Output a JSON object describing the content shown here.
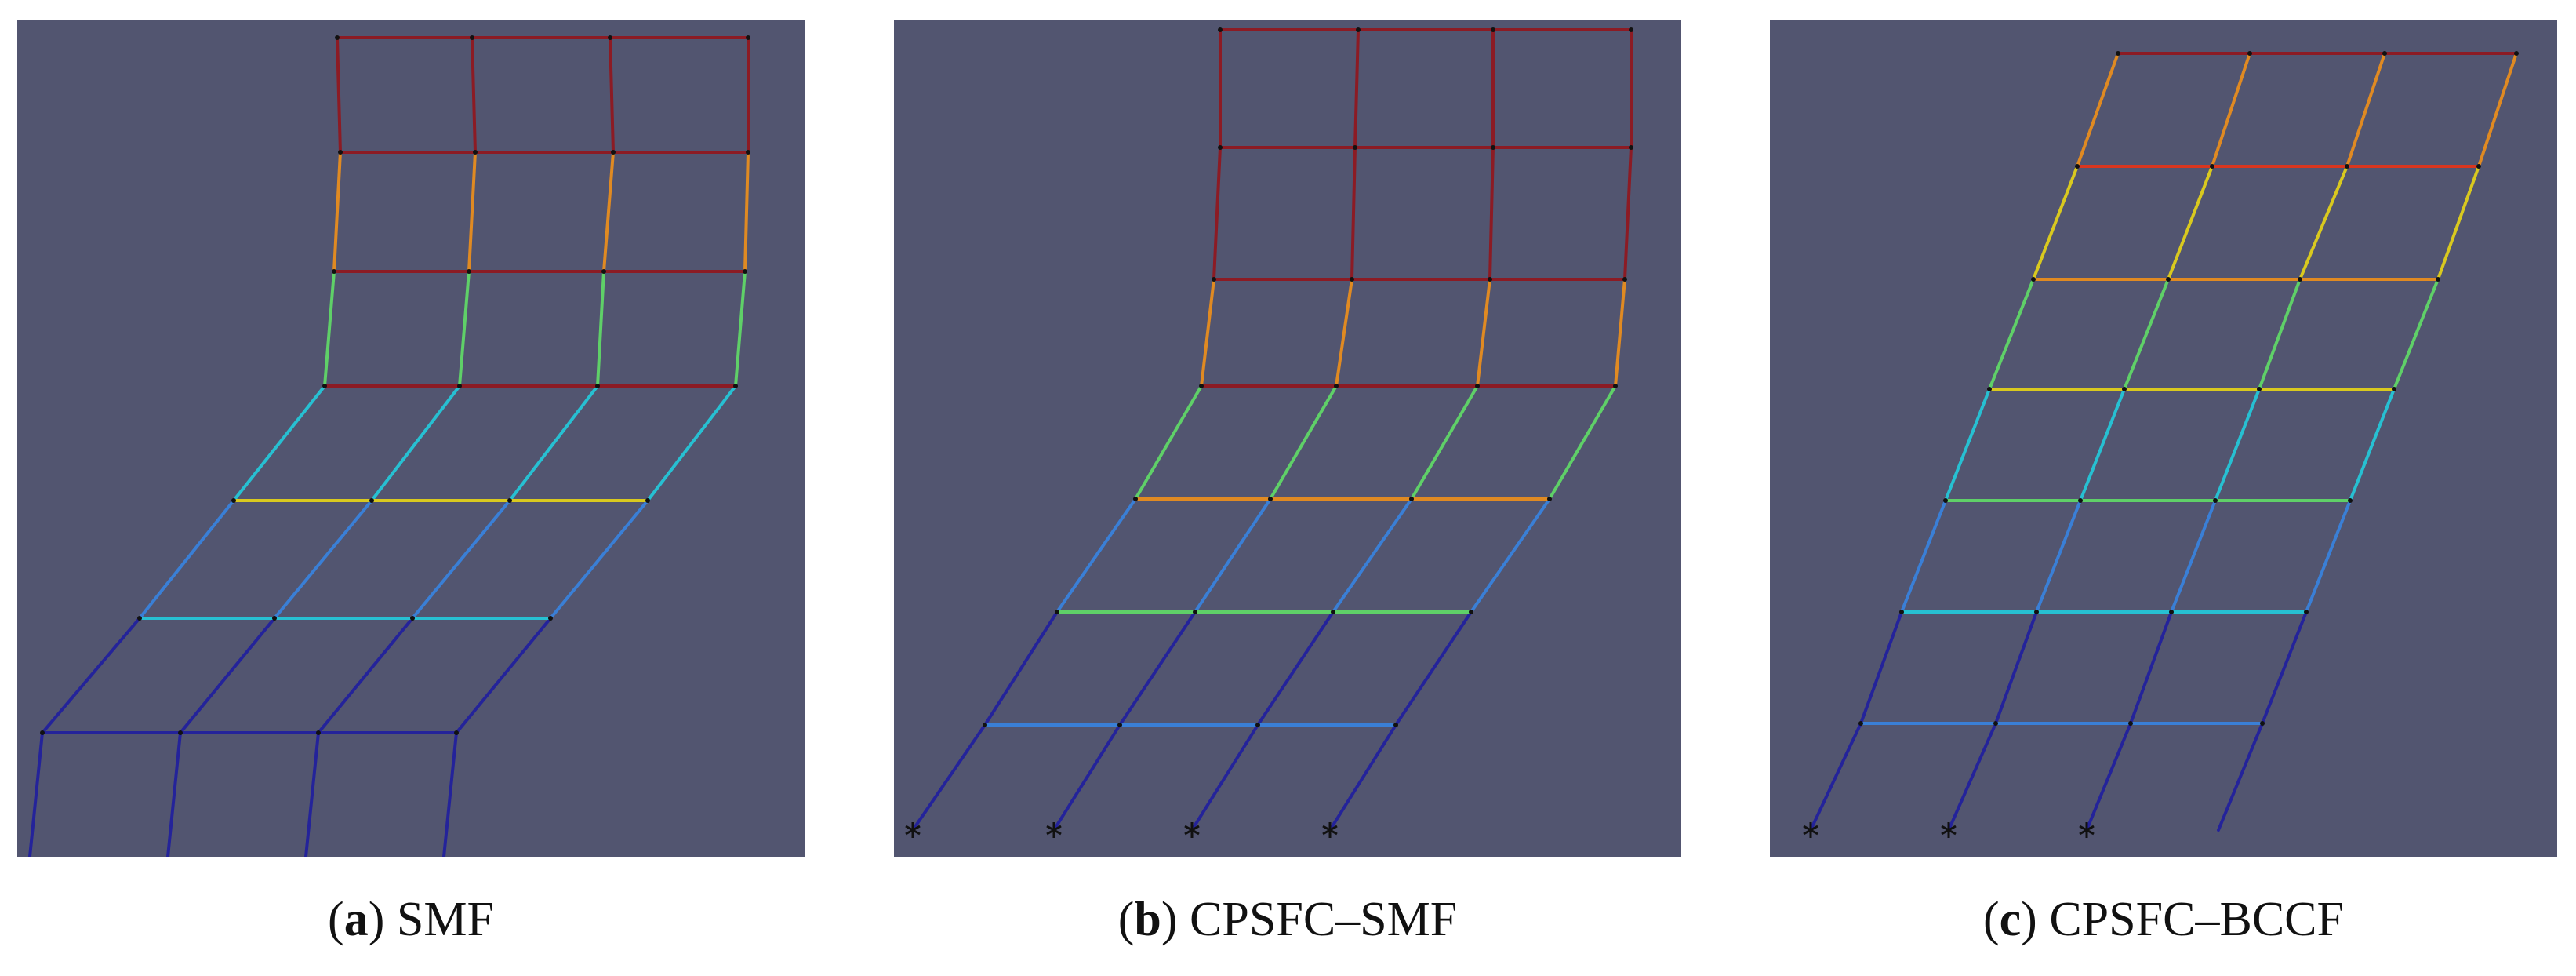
{
  "panels": [
    {
      "letter": "a",
      "title": "SMF"
    },
    {
      "letter": "b",
      "title": "CPSFC–SMF"
    },
    {
      "letter": "c",
      "title": "CPSFC–BCCF"
    }
  ],
  "colors": {
    "background": "#525570",
    "blue": "#24239a",
    "light_blue": "#3a7fd6",
    "cyan": "#27c0d2",
    "green": "#5fd068",
    "yellow": "#d9c91f",
    "orange": "#e08a22",
    "red": "#d9361f",
    "dark_red": "#8c1b24"
  }
}
